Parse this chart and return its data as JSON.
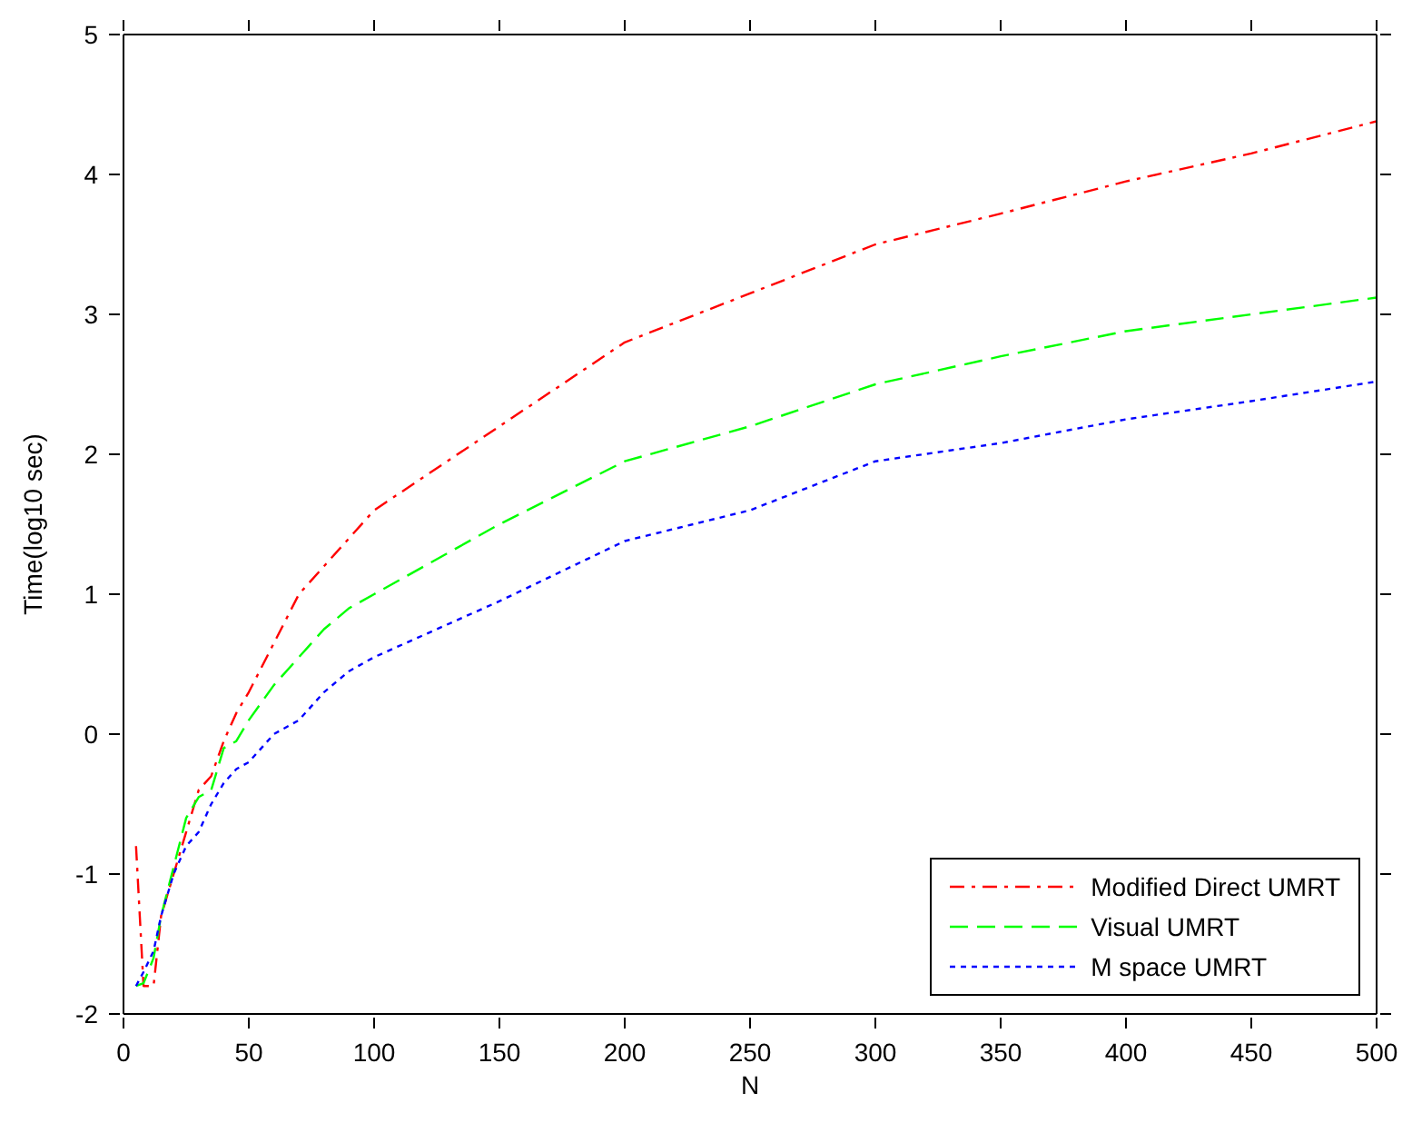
{
  "chart_data": {
    "type": "line",
    "xlabel": "N",
    "ylabel": "Time(log10 sec)",
    "xlim": [
      0,
      500
    ],
    "xticks": [
      0,
      50,
      100,
      150,
      200,
      250,
      300,
      350,
      400,
      450,
      500
    ],
    "ylim": [
      -2,
      5
    ],
    "yticks": [
      -2,
      -1,
      0,
      1,
      2,
      3,
      4,
      5
    ],
    "grid": false,
    "legend": "bottom right",
    "marker": "none",
    "x": [
      5,
      8,
      12,
      15,
      20,
      25,
      30,
      35,
      40,
      45,
      50,
      60,
      70,
      80,
      90,
      100,
      150,
      200,
      250,
      300,
      350,
      400,
      450,
      500
    ],
    "series": [
      {
        "name": "Modified Direct UMRT",
        "color": "#ff0000",
        "line_style": "dashdot",
        "values": [
          -0.8,
          -1.8,
          -1.8,
          -1.3,
          -1.0,
          -0.7,
          -0.4,
          -0.3,
          -0.05,
          0.15,
          0.3,
          0.65,
          1.0,
          1.2,
          1.4,
          1.6,
          2.2,
          2.8,
          3.15,
          3.5,
          3.72,
          3.95,
          4.15,
          4.38
        ]
      },
      {
        "name": "Visual UMRT",
        "color": "#00ff00",
        "line_style": "dashed",
        "values": [
          -1.8,
          -1.78,
          -1.6,
          -1.3,
          -0.95,
          -0.6,
          -0.45,
          -0.4,
          -0.1,
          -0.05,
          0.1,
          0.35,
          0.55,
          0.75,
          0.9,
          1.0,
          1.5,
          1.95,
          2.2,
          2.5,
          2.7,
          2.88,
          3.0,
          3.12
        ]
      },
      {
        "name": "M space UMRT",
        "color": "#0000ff",
        "line_style": "dotted",
        "values": [
          -1.8,
          -1.7,
          -1.55,
          -1.3,
          -1.0,
          -0.8,
          -0.7,
          -0.5,
          -0.35,
          -0.25,
          -0.2,
          0.0,
          0.1,
          0.3,
          0.45,
          0.55,
          0.95,
          1.38,
          1.6,
          1.95,
          2.08,
          2.25,
          2.38,
          2.52
        ]
      }
    ]
  }
}
